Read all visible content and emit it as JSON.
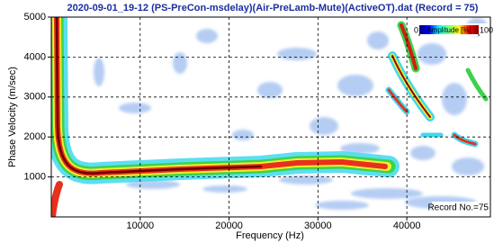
{
  "chart_data": {
    "type": "heatmap",
    "title": "2020-09-01_19-12 (PS-PreCon-msdelay)(Air-PreLamb-Mute)(ActiveOT).dat (Record = 75)",
    "x_label": "Frequency (Hz)",
    "y_label": "Phase Velocity (m/sec)",
    "xlim": [
      0,
      49400
    ],
    "xticks": [
      10000,
      20000,
      30000,
      40000
    ],
    "ylim": [
      0,
      5000
    ],
    "yticks": [
      1000,
      2000,
      3000,
      4000,
      5000
    ],
    "grid": true,
    "colormap": "jet",
    "colorbar": {
      "label": "Amplitude [%]",
      "clim": [
        0,
        100
      ],
      "ticks": [
        0,
        100
      ]
    },
    "annotation": "Record No.=75"
  }
}
